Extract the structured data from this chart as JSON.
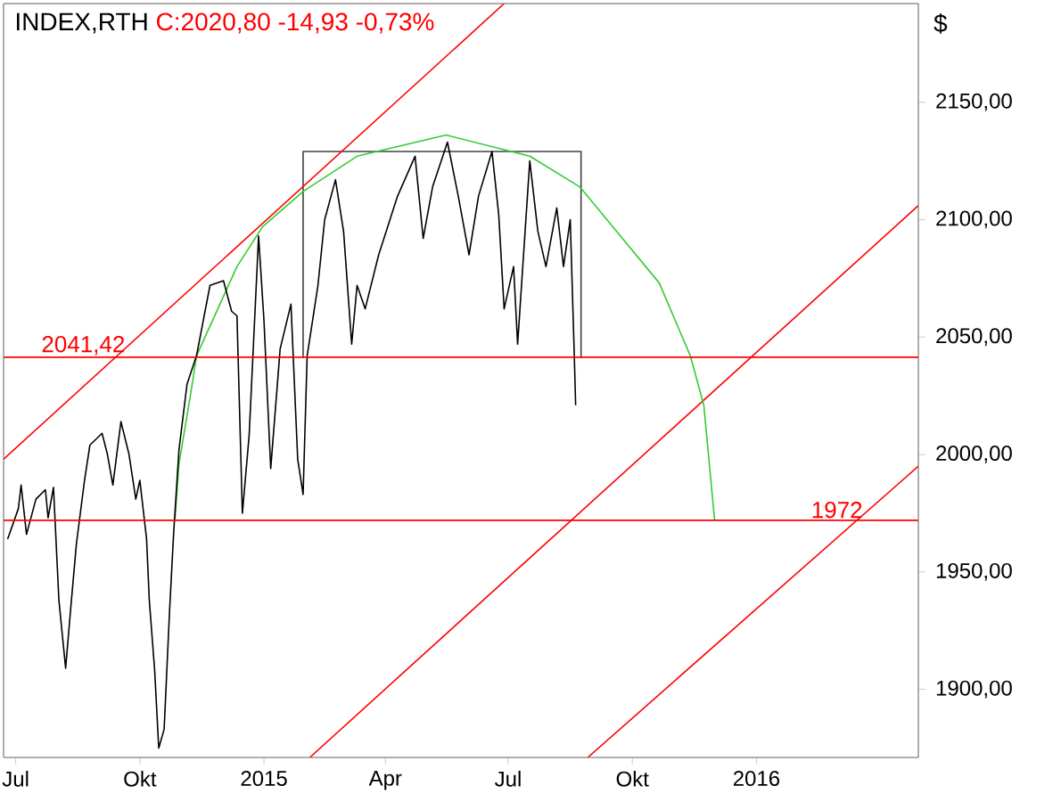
{
  "chart_data": {
    "type": "line",
    "title": "INDEX,RTH",
    "subtitle": "C:2020,80 -14,93 -0,73%",
    "ylabel": "$",
    "xlim": [
      "2014-06-22",
      "2016-04-30"
    ],
    "ylim": [
      1871,
      2192
    ],
    "xticks": [
      {
        "value": "2014-07-01",
        "label": "Jul"
      },
      {
        "value": "2014-10-01",
        "label": "Okt"
      },
      {
        "value": "2015-01-01",
        "label": "2015"
      },
      {
        "value": "2015-04-01",
        "label": "Apr"
      },
      {
        "value": "2015-07-01",
        "label": "Jul"
      },
      {
        "value": "2015-10-01",
        "label": "Okt"
      },
      {
        "value": "2016-01-01",
        "label": "2016"
      }
    ],
    "yticks": [
      {
        "value": 1900,
        "label": "1900,00"
      },
      {
        "value": 1950,
        "label": "1950,00"
      },
      {
        "value": 2000,
        "label": "2000,00"
      },
      {
        "value": 2050,
        "label": "2050,00"
      },
      {
        "value": 2100,
        "label": "2100,00"
      },
      {
        "value": 2150,
        "label": "2150,00"
      }
    ],
    "ref_lines": [
      {
        "axis": "y",
        "value": 2041.42,
        "label": "2041,42",
        "color": "#ff0000"
      },
      {
        "axis": "y",
        "value": 1972,
        "label": "1972",
        "color": "#ff0000"
      }
    ],
    "series": [
      {
        "color": "#404040",
        "x": [
          "2015-01-30",
          "2015-01-30",
          "2015-08-24",
          "2015-08-24"
        ],
        "values": [
          2041,
          2129,
          2129,
          2041
        ]
      },
      {
        "color": "#ff0000",
        "x": [
          "2014-06-22",
          "2015-06-28"
        ],
        "values": [
          1998,
          2192
        ]
      },
      {
        "color": "#ff0000",
        "x": [
          "2015-02-04",
          "2016-04-30"
        ],
        "values": [
          1871,
          2106
        ]
      },
      {
        "color": "#ff0000",
        "x": [
          "2015-08-29",
          "2016-04-30"
        ],
        "values": [
          1871,
          1995
        ]
      },
      {
        "color": "#33cc33",
        "x": [
          "2014-10-27",
          "2014-10-30",
          "2014-11-08",
          "2014-11-12",
          "2014-12-12",
          "2014-12-31",
          "2015-01-30",
          "2015-03-11",
          "2015-05-16",
          "2015-07-17",
          "2015-08-23",
          "2015-10-21",
          "2015-11-13",
          "2015-11-23",
          "2015-12-01"
        ],
        "values": [
          1972,
          1996,
          2027,
          2042,
          2080,
          2097,
          2112,
          2127,
          2136,
          2127,
          2114,
          2073,
          2042,
          2021,
          1972
        ]
      },
      {
        "color": "#000000",
        "x": [
          "2014-06-25",
          "2014-07-03",
          "2014-07-05",
          "2014-07-09",
          "2014-07-16",
          "2014-07-23",
          "2014-07-25",
          "2014-07-29",
          "2014-08-02",
          "2014-08-07",
          "2014-08-11",
          "2014-08-15",
          "2014-08-21",
          "2014-08-25",
          "2014-09-03",
          "2014-09-07",
          "2014-09-11",
          "2014-09-17",
          "2014-09-23",
          "2014-09-28",
          "2014-10-01",
          "2014-10-06",
          "2014-10-08",
          "2014-10-12",
          "2014-10-15",
          "2014-10-19",
          "2014-10-23",
          "2014-10-26",
          "2014-10-30",
          "2014-11-05",
          "2014-11-12",
          "2014-11-22",
          "2014-12-02",
          "2014-12-08",
          "2014-12-12",
          "2014-12-16",
          "2014-12-21",
          "2014-12-28",
          "2015-01-01",
          "2015-01-06",
          "2015-01-13",
          "2015-01-21",
          "2015-01-26",
          "2015-01-30",
          "2015-02-02",
          "2015-02-10",
          "2015-02-15",
          "2015-02-23",
          "2015-03-01",
          "2015-03-07",
          "2015-03-11",
          "2015-03-17",
          "2015-03-27",
          "2015-04-10",
          "2015-04-23",
          "2015-04-29",
          "2015-05-06",
          "2015-05-17",
          "2015-05-25",
          "2015-06-02",
          "2015-06-09",
          "2015-06-19",
          "2015-06-24",
          "2015-06-28",
          "2015-07-05",
          "2015-07-08",
          "2015-07-17",
          "2015-07-23",
          "2015-07-29",
          "2015-08-06",
          "2015-08-11",
          "2015-08-16",
          "2015-08-19",
          "2015-08-20"
        ],
        "values": [
          1964,
          1977,
          1987,
          1966,
          1981,
          1985,
          1973,
          1986,
          1938,
          1909,
          1936,
          1962,
          1989,
          2004,
          2009,
          2000,
          1987,
          2014,
          2000,
          1981,
          1989,
          1964,
          1938,
          1908,
          1875,
          1883,
          1933,
          1966,
          2002,
          2030,
          2042,
          2072,
          2074,
          2061,
          2059,
          1975,
          2008,
          2093,
          2057,
          1994,
          2045,
          2064,
          1998,
          1983,
          2042,
          2072,
          2100,
          2117,
          2095,
          2047,
          2072,
          2062,
          2085,
          2110,
          2127,
          2092,
          2114,
          2133,
          2110,
          2085,
          2110,
          2129,
          2102,
          2062,
          2080,
          2047,
          2125,
          2095,
          2080,
          2105,
          2080,
          2100,
          2042,
          2021
        ]
      }
    ]
  }
}
